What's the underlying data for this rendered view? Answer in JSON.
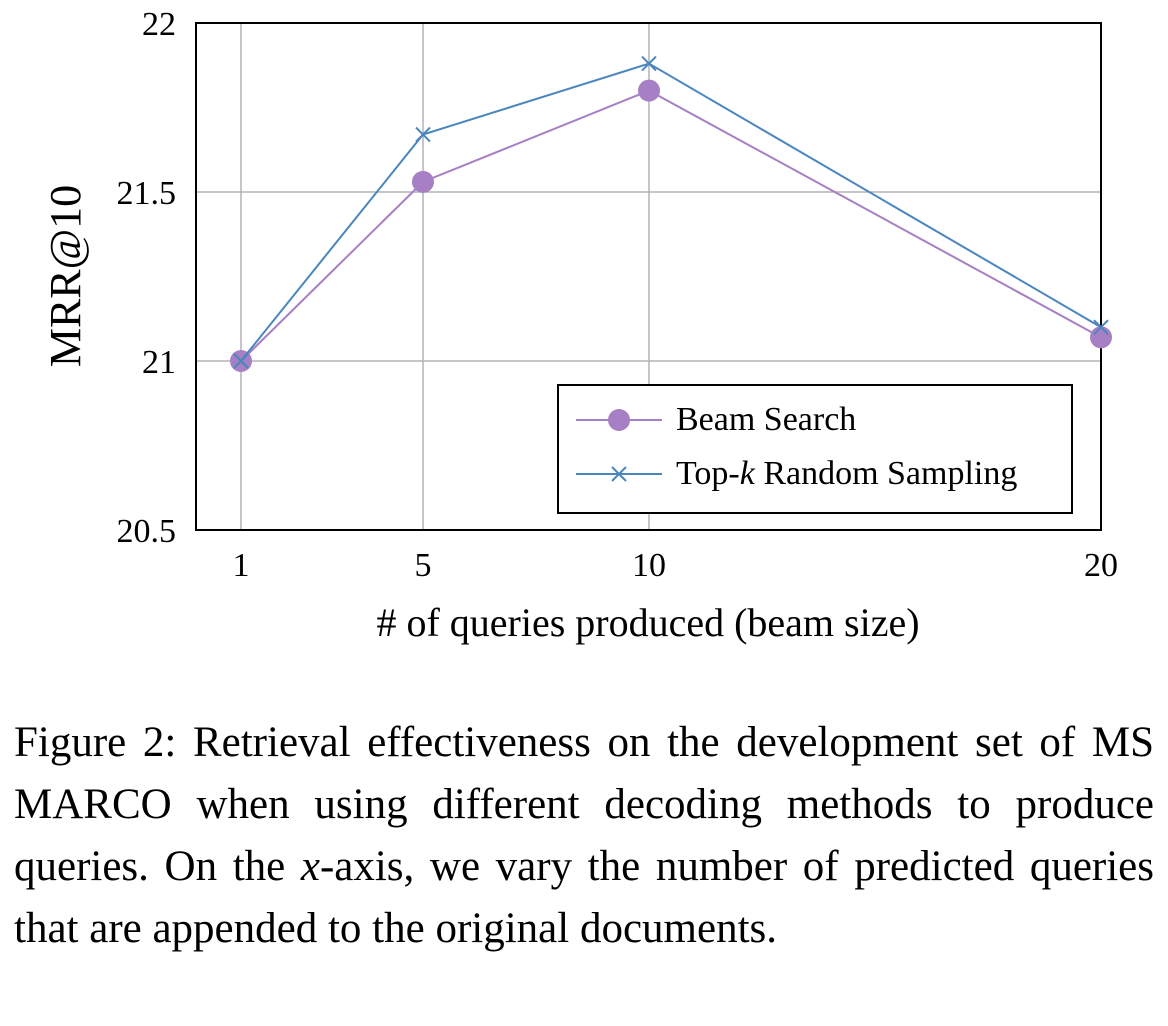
{
  "chart_data": {
    "type": "line",
    "x": [
      1,
      5,
      10,
      20
    ],
    "x_ticks": [
      "1",
      "5",
      "10",
      "20"
    ],
    "y_ticks": [
      "20.5",
      "21",
      "21.5",
      "22"
    ],
    "ylim": [
      20.5,
      22
    ],
    "xlabel": "# of queries produced (beam size)",
    "ylabel": "MRR@10",
    "grid": true,
    "legend_position": "bottom-right",
    "series": [
      {
        "name": "Beam Search",
        "values": [
          21.0,
          21.53,
          21.8,
          21.07
        ],
        "color": "#a67fc4",
        "marker": "circle"
      },
      {
        "name_prefix": "Top-",
        "name_italic": "k",
        "name_suffix": " Random Sampling",
        "values": [
          21.0,
          21.67,
          21.88,
          21.1
        ],
        "color": "#4a86bd",
        "marker": "x"
      }
    ]
  },
  "caption": {
    "part1": "Figure 2:  Retrieval effectiveness on the development set of MS MARCO when using different decoding methods to produce queries.  On the ",
    "italic": "x",
    "part2": "-axis, we vary the number of predicted queries that are appended to the original documents."
  }
}
